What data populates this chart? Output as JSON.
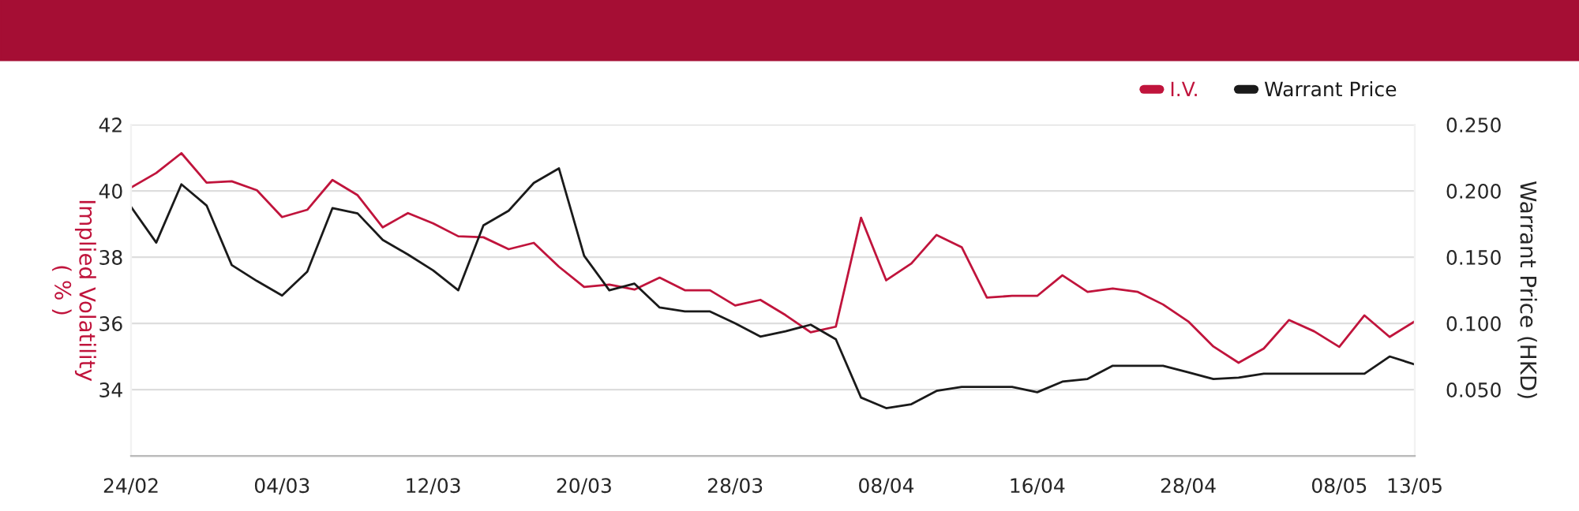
{
  "chart_data": {
    "type": "line",
    "categories": [
      "24/02",
      null,
      null,
      null,
      null,
      null,
      "04/03",
      null,
      null,
      null,
      null,
      null,
      "12/03",
      null,
      null,
      null,
      null,
      null,
      "20/03",
      null,
      null,
      null,
      null,
      null,
      "28/03",
      null,
      null,
      null,
      null,
      null,
      "08/04",
      null,
      null,
      null,
      null,
      null,
      "16/04",
      null,
      null,
      null,
      null,
      null,
      "28/04",
      null,
      null,
      null,
      null,
      null,
      "08/05",
      null,
      null,
      "13/05"
    ],
    "series": [
      {
        "name": "I.V.",
        "color": "#c0143c",
        "values": [
          40.1,
          40.54,
          41.14,
          40.25,
          40.29,
          40.02,
          39.21,
          39.43,
          40.33,
          39.87,
          38.9,
          39.33,
          39.02,
          38.63,
          38.6,
          38.24,
          38.43,
          37.71,
          37.1,
          37.17,
          37.02,
          37.38,
          37.0,
          37.0,
          36.54,
          36.71,
          36.25,
          35.73,
          35.9,
          39.19,
          37.3,
          37.81,
          38.67,
          38.3,
          36.78,
          36.83,
          36.83,
          37.45,
          36.95,
          37.05,
          36.95,
          36.57,
          36.06,
          35.3,
          34.81,
          35.24,
          36.1,
          35.76,
          35.29,
          36.24,
          35.59,
          36.06
        ]
      },
      {
        "name": "Warrant Price",
        "color": "#1a1a1a",
        "axis": "y2",
        "values": [
          0.188,
          0.161,
          0.205,
          0.189,
          0.144,
          0.132,
          0.121,
          0.139,
          0.187,
          0.183,
          0.163,
          0.152,
          0.14,
          0.125,
          0.174,
          0.185,
          0.206,
          0.217,
          0.151,
          0.125,
          0.13,
          0.112,
          0.109,
          0.109,
          0.1,
          0.09,
          0.094,
          0.099,
          0.088,
          0.044,
          0.036,
          0.039,
          0.049,
          0.052,
          0.052,
          0.052,
          0.048,
          0.056,
          0.058,
          0.068,
          0.068,
          0.068,
          0.063,
          0.058,
          0.059,
          0.062,
          0.062,
          0.062,
          0.062,
          0.062,
          0.075,
          0.069
        ]
      }
    ],
    "ylabel": "Implied Volatility\n( % )",
    "y2label": "Warrant Price (HKD)",
    "ylim": [
      32,
      42
    ],
    "yticks": [
      34,
      36,
      38,
      40,
      42
    ],
    "y2lim": [
      0,
      0.25
    ],
    "y2ticks": [
      {
        "value": 0.05,
        "label": "0.050"
      },
      {
        "value": 0.1,
        "label": "0.100"
      },
      {
        "value": 0.15,
        "label": "0.150"
      },
      {
        "value": 0.2,
        "label": "0.200"
      },
      {
        "value": 0.25,
        "label": "0.250"
      }
    ],
    "grid": "y",
    "legend": "top right",
    "line_style": "solid"
  }
}
